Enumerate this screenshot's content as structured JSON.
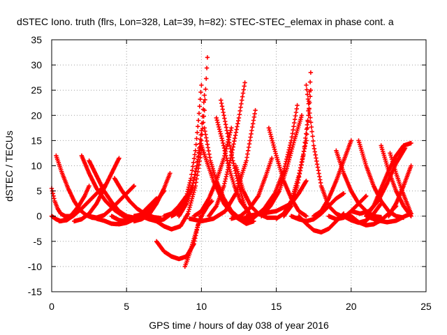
{
  "chart_data": {
    "type": "scatter",
    "title": "dSTEC Iono. truth (flrs, Lon=328, Lat=39, h=82): STEC-STEC_elemax in phase cont. a",
    "xlabel": "GPS time / hours of day 038 of year 2016",
    "ylabel": "dSTEC  / TECUs",
    "xlim": [
      0,
      25
    ],
    "ylim": [
      -15,
      35
    ],
    "xticks": [
      0,
      5,
      10,
      15,
      20,
      25
    ],
    "yticks": [
      -15,
      -10,
      -5,
      0,
      5,
      10,
      15,
      20,
      25,
      30,
      35
    ],
    "grid": true,
    "marker": "plus",
    "color": "#ff0000",
    "series": [
      {
        "x": [
          0.0,
          0.2,
          0.4,
          0.6,
          0.9,
          1.2
        ],
        "y": [
          5.5,
          3.0,
          1.5,
          0.5,
          0.0,
          0.0
        ]
      },
      {
        "x": [
          0.0,
          0.3,
          0.6,
          1.0,
          1.4,
          1.8,
          2.2,
          2.5
        ],
        "y": [
          0.0,
          -0.6,
          -1.0,
          -0.6,
          0.5,
          2.0,
          4.0,
          6.0
        ]
      },
      {
        "x": [
          0.3,
          0.7,
          1.1,
          1.5,
          1.9,
          2.3,
          2.7,
          3.2
        ],
        "y": [
          12.0,
          8.5,
          5.5,
          3.0,
          1.2,
          0.2,
          -0.3,
          -0.5
        ]
      },
      {
        "x": [
          0.5,
          1.0,
          1.5,
          2.0,
          2.5,
          3.0,
          3.5
        ],
        "y": [
          -1.0,
          -0.8,
          0.2,
          1.5,
          3.0,
          4.5,
          6.0
        ]
      },
      {
        "x": [
          2.0,
          2.5,
          3.0,
          3.6,
          4.2,
          4.8,
          5.4
        ],
        "y": [
          12.0,
          8.5,
          5.5,
          3.0,
          1.2,
          0.0,
          -0.6
        ]
      },
      {
        "x": [
          1.5,
          2.0,
          2.5,
          3.0,
          3.5,
          4.0,
          4.5
        ],
        "y": [
          -1.0,
          -0.6,
          0.5,
          2.5,
          5.5,
          8.5,
          11.5
        ]
      },
      {
        "x": [
          2.5,
          3.0,
          3.5,
          4.0,
          4.5,
          5.0,
          5.5
        ],
        "y": [
          11.0,
          8.0,
          5.0,
          2.8,
          1.0,
          0.0,
          -0.3
        ]
      },
      {
        "x": [
          2.5,
          3.0,
          3.5,
          4.0,
          4.5,
          5.0,
          5.5
        ],
        "y": [
          0.0,
          -0.3,
          0.2,
          1.5,
          3.0,
          4.5,
          6.0
        ]
      },
      {
        "x": [
          4.2,
          4.7,
          5.2,
          5.7,
          6.2,
          6.8,
          7.3
        ],
        "y": [
          7.5,
          5.0,
          3.0,
          1.5,
          0.5,
          -0.2,
          -0.4
        ]
      },
      {
        "x": [
          3.0,
          3.5,
          4.0,
          4.5,
          5.0,
          5.5,
          6.0
        ],
        "y": [
          -0.5,
          -0.9,
          -1.5,
          -1.6,
          -1.3,
          -0.6,
          0.3
        ]
      },
      {
        "x": [
          4.0,
          4.5,
          5.0,
          5.5,
          6.0,
          6.5,
          7.0
        ],
        "y": [
          0.0,
          -0.8,
          -1.0,
          -0.7,
          0.5,
          2.0,
          3.5
        ]
      },
      {
        "x": [
          5.5,
          6.0,
          6.5,
          7.0,
          7.5
        ],
        "y": [
          0.0,
          0.3,
          1.2,
          3.0,
          5.0
        ]
      },
      {
        "x": [
          5.5,
          6.0,
          6.5,
          7.0,
          7.5,
          7.9
        ],
        "y": [
          -1.0,
          -0.6,
          0.3,
          2.5,
          5.5,
          8.5
        ]
      },
      {
        "x": [
          6.0,
          6.5,
          7.0,
          7.5,
          8.0,
          8.5,
          9.0
        ],
        "y": [
          0.0,
          -0.6,
          -1.0,
          -0.6,
          0.5,
          2.0,
          4.0
        ]
      },
      {
        "x": [
          5.8,
          6.5,
          7.0,
          7.5,
          8.0,
          8.6,
          9.1,
          9.6,
          10.0
        ],
        "y": [
          0.0,
          0.0,
          -1.0,
          -2.0,
          -2.6,
          -2.0,
          0.5,
          6.0,
          13.0
        ]
      },
      {
        "x": [
          7.0,
          7.5,
          8.0,
          8.5,
          9.0,
          9.5,
          9.9
        ],
        "y": [
          -5.0,
          -7.0,
          -8.0,
          -8.5,
          -8.0,
          -5.5,
          0.0
        ]
      },
      {
        "x": [
          8.9,
          9.2,
          9.5,
          9.8,
          10.1,
          10.4,
          10.7
        ],
        "y": [
          -10.0,
          -7.5,
          -4.5,
          -1.5,
          0.5,
          2.0,
          3.0
        ]
      },
      {
        "x": [
          7.5,
          8.0,
          8.5,
          9.0,
          9.3,
          9.6,
          9.8,
          10.0
        ],
        "y": [
          0.0,
          0.5,
          1.5,
          4.0,
          7.5,
          13.0,
          19.0,
          26.0
        ]
      },
      {
        "x": [
          8.0,
          8.6,
          9.0,
          9.4,
          9.7,
          10.0,
          10.2,
          10.4
        ],
        "y": [
          0.0,
          1.0,
          3.0,
          6.0,
          10.0,
          15.0,
          21.0,
          31.5
        ]
      },
      {
        "x": [
          8.5,
          9.0,
          9.4,
          9.7,
          10.0,
          10.2
        ],
        "y": [
          0.0,
          2.5,
          6.0,
          10.0,
          17.0,
          24.0
        ]
      },
      {
        "x": [
          10.2,
          10.6,
          11.0,
          11.5,
          12.0,
          12.5,
          13.0
        ],
        "y": [
          17.5,
          11.0,
          7.0,
          3.5,
          1.0,
          -0.3,
          -0.5
        ]
      },
      {
        "x": [
          9.5,
          10.0,
          10.5,
          11.0,
          11.5,
          12.0
        ],
        "y": [
          0.0,
          1.0,
          3.5,
          7.0,
          11.5,
          17.5
        ]
      },
      {
        "x": [
          11.0,
          11.4,
          11.8,
          12.2,
          12.6,
          13.1
        ],
        "y": [
          19.5,
          15.0,
          10.0,
          6.0,
          3.0,
          1.0
        ]
      },
      {
        "x": [
          11.3,
          11.7,
          12.1,
          12.5,
          12.9,
          13.3
        ],
        "y": [
          23.0,
          17.0,
          11.0,
          6.0,
          2.0,
          0.0
        ]
      },
      {
        "x": [
          10.5,
          11.0,
          11.5,
          12.0,
          12.5,
          12.9
        ],
        "y": [
          0.0,
          2.0,
          6.0,
          12.0,
          19.5,
          26.5
        ]
      },
      {
        "x": [
          9.2,
          10.0,
          10.8,
          11.6,
          12.3,
          13.0,
          13.6
        ],
        "y": [
          -0.5,
          -1.0,
          -0.5,
          1.0,
          4.5,
          11.0,
          21.0
        ]
      },
      {
        "x": [
          10.0,
          10.8,
          11.5,
          12.2,
          13.0,
          13.5
        ],
        "y": [
          14.0,
          7.0,
          2.5,
          0.0,
          -1.5,
          -1.0
        ]
      },
      {
        "x": [
          12.3,
          12.8,
          13.3,
          13.8,
          14.4,
          15.0
        ],
        "y": [
          10.0,
          5.0,
          2.0,
          0.5,
          -0.3,
          -0.3
        ]
      },
      {
        "x": [
          12.0,
          12.6,
          13.2,
          13.8,
          14.3,
          14.7
        ],
        "y": [
          -0.5,
          0.0,
          1.5,
          4.0,
          8.0,
          11.5
        ]
      },
      {
        "x": [
          12.8,
          13.5,
          14.2,
          14.9,
          15.5,
          16.0,
          16.4
        ],
        "y": [
          -1.0,
          -0.3,
          1.5,
          4.5,
          9.0,
          15.0,
          22.0
        ]
      },
      {
        "x": [
          14.5,
          15.0,
          15.5,
          16.0,
          16.5,
          17.0
        ],
        "y": [
          17.5,
          12.0,
          7.0,
          3.5,
          1.0,
          0.0
        ]
      },
      {
        "x": [
          13.0,
          14.0,
          15.0,
          16.0,
          16.5,
          17.0
        ],
        "y": [
          0.0,
          0.5,
          1.0,
          2.5,
          4.5,
          7.0
        ]
      },
      {
        "x": [
          14.0,
          14.6,
          15.2,
          15.7,
          16.2,
          16.7
        ],
        "y": [
          0.0,
          2.0,
          5.0,
          9.5,
          15.0,
          20.0
        ]
      },
      {
        "x": [
          15.0,
          15.5,
          16.0,
          16.5,
          17.0,
          17.3
        ],
        "y": [
          -0.5,
          0.5,
          3.0,
          8.0,
          15.0,
          25.0
        ]
      },
      {
        "x": [
          15.5,
          16.0,
          16.4,
          16.8,
          17.1,
          17.3
        ],
        "y": [
          0.0,
          2.0,
          6.0,
          12.0,
          19.0,
          28.5
        ]
      },
      {
        "x": [
          17.0,
          17.5,
          18.0,
          18.5,
          19.0,
          19.5,
          20.0
        ],
        "y": [
          26.0,
          14.0,
          6.0,
          2.0,
          0.5,
          -0.2,
          0.0
        ]
      },
      {
        "x": [
          16.5,
          17.0,
          17.5,
          18.0,
          18.5,
          19.0,
          19.5
        ],
        "y": [
          0.0,
          -1.5,
          -2.8,
          -3.2,
          -2.5,
          -1.0,
          0.5
        ]
      },
      {
        "x": [
          16.0,
          16.5,
          17.0,
          17.5,
          18.0,
          18.5,
          19.0,
          19.5
        ],
        "y": [
          0.0,
          -0.6,
          -1.0,
          -0.6,
          0.5,
          2.0,
          3.5,
          4.5
        ]
      },
      {
        "x": [
          17.5,
          18.0,
          18.5,
          19.0,
          19.5,
          20.0
        ],
        "y": [
          0.0,
          1.0,
          3.5,
          7.0,
          11.0,
          15.0
        ]
      },
      {
        "x": [
          19.0,
          19.5,
          20.0,
          20.5,
          21.0,
          21.5,
          22.0
        ],
        "y": [
          13.0,
          8.5,
          5.0,
          2.5,
          1.0,
          0.0,
          -0.2
        ]
      },
      {
        "x": [
          18.5,
          19.0,
          19.5,
          20.0,
          20.5,
          21.0
        ],
        "y": [
          0.0,
          -0.6,
          -0.3,
          1.0,
          2.5,
          4.0
        ]
      },
      {
        "x": [
          19.5,
          20.0,
          20.5,
          21.0,
          21.5,
          22.0
        ],
        "y": [
          0.0,
          -0.8,
          -1.3,
          -0.9,
          0.5,
          2.5
        ]
      },
      {
        "x": [
          20.5,
          21.0,
          21.5,
          22.0,
          22.5,
          23.0,
          23.5
        ],
        "y": [
          15.0,
          10.0,
          6.0,
          3.0,
          1.0,
          0.0,
          -0.3
        ]
      },
      {
        "x": [
          20.0,
          20.5,
          21.0,
          21.5,
          22.0,
          22.5,
          23.0
        ],
        "y": [
          0.0,
          -1.2,
          -1.8,
          -1.6,
          -0.8,
          0.5,
          2.0
        ]
      },
      {
        "x": [
          20.0,
          20.6,
          21.2,
          21.8,
          22.4,
          23.0,
          23.6
        ],
        "y": [
          1.0,
          0.5,
          1.0,
          3.0,
          6.5,
          10.5,
          13.5
        ]
      },
      {
        "x": [
          21.0,
          21.5,
          22.0,
          22.5,
          23.0,
          23.5,
          24.0
        ],
        "y": [
          0.0,
          2.0,
          5.5,
          9.0,
          12.0,
          14.0,
          14.5
        ]
      },
      {
        "x": [
          22.0,
          22.5,
          23.0,
          23.5,
          24.0
        ],
        "y": [
          14.0,
          9.0,
          5.0,
          2.0,
          0.0
        ]
      },
      {
        "x": [
          22.6,
          23.0,
          23.4,
          23.8,
          24.0
        ],
        "y": [
          12.5,
          8.5,
          5.0,
          2.0,
          0.5
        ]
      },
      {
        "x": [
          21.0,
          21.7,
          22.4,
          23.0,
          23.6,
          24.0
        ],
        "y": [
          0.0,
          -0.8,
          -1.2,
          -0.9,
          0.0,
          0.5
        ]
      },
      {
        "x": [
          22.5,
          23.0,
          23.5,
          24.0
        ],
        "y": [
          0.0,
          2.5,
          6.0,
          10.0
        ]
      }
    ]
  }
}
